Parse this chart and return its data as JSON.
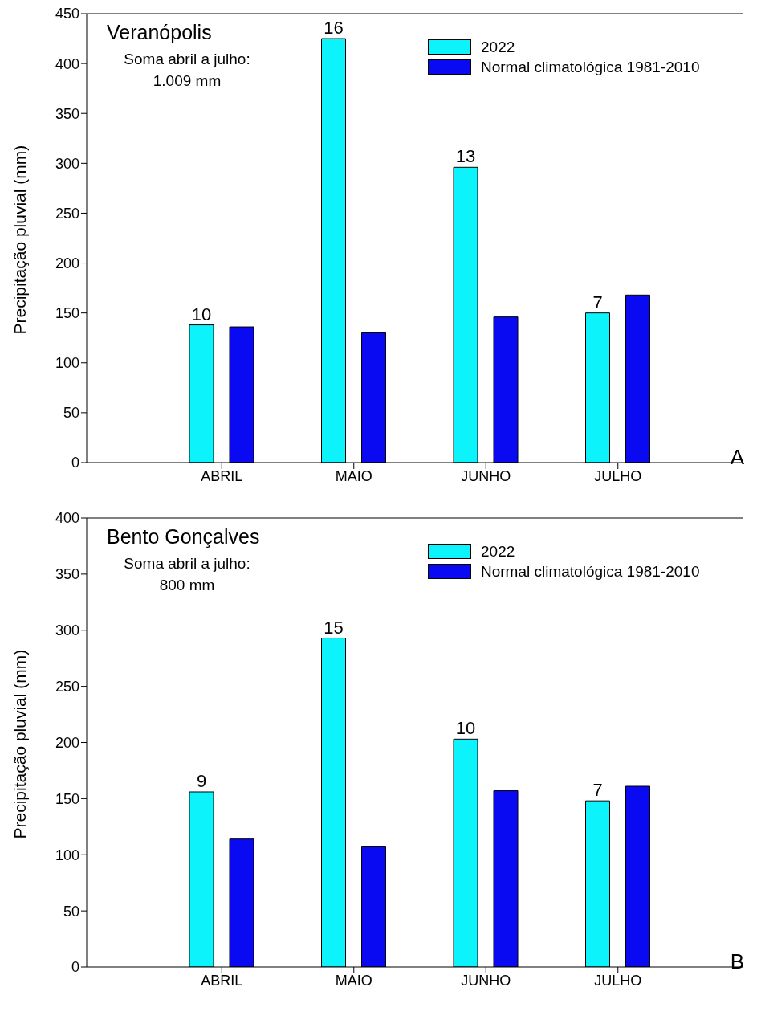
{
  "chart_data": [
    {
      "type": "bar",
      "title": "Veranópolis",
      "ylabel": "Precipitação pluvial (mm)",
      "annotations": [
        "Soma abril a julho:\n1.009 mm",
        "A",
        "10",
        "16",
        "13",
        "7"
      ],
      "categories": [
        "ABRIL",
        "MAIO",
        "JUNHO",
        "JULHO"
      ],
      "series": [
        {
          "name": "2022",
          "color": "#0df3fb",
          "values": [
            138,
            425,
            296,
            150
          ]
        },
        {
          "name": "Normal climatológica 1981-2010",
          "color": "#0a0af2",
          "values": [
            136,
            130,
            146,
            168
          ]
        }
      ],
      "ylim": [
        0,
        450
      ],
      "yticks": [
        0,
        50,
        100,
        150,
        200,
        250,
        300,
        350,
        400,
        450
      ],
      "grid": false,
      "legend": "top right"
    },
    {
      "type": "bar",
      "title": "Bento Gonçalves",
      "ylabel": "Precipitação pluvial (mm)",
      "annotations": [
        "Soma abril a julho:\n800 mm",
        "B",
        "9",
        "15",
        "10",
        "7"
      ],
      "categories": [
        "ABRIL",
        "MAIO",
        "JUNHO",
        "JULHO"
      ],
      "series": [
        {
          "name": "2022",
          "color": "#0df3fb",
          "values": [
            156,
            293,
            203,
            148
          ]
        },
        {
          "name": "Normal climatológica 1981-2010",
          "color": "#0a0af2",
          "values": [
            114,
            107,
            157,
            161
          ]
        }
      ],
      "ylim": [
        0,
        400
      ],
      "yticks": [
        0,
        50,
        100,
        150,
        200,
        250,
        300,
        350,
        400
      ],
      "grid": false,
      "legend": "top right"
    }
  ]
}
